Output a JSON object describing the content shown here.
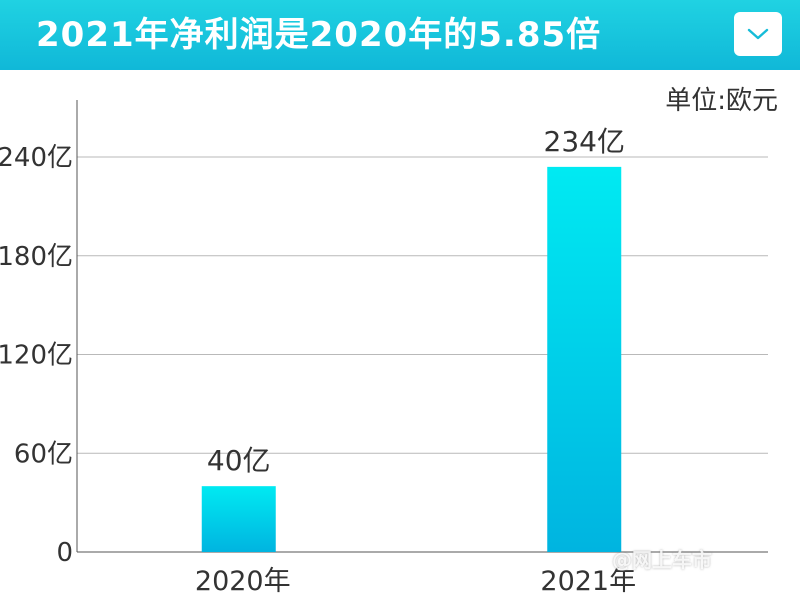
{
  "header": {
    "title": "2021年净利润是2020年的5.85倍",
    "dropdown_icon": "chevron-down-icon"
  },
  "chart_data": {
    "type": "bar",
    "unit_label": "单位:欧元",
    "categories": [
      "2020年",
      "2021年"
    ],
    "values": [
      40,
      234
    ],
    "data_labels": [
      "40亿",
      "234亿"
    ],
    "y_ticks": [
      0,
      60,
      120,
      180,
      240
    ],
    "y_tick_labels": [
      "0",
      "60亿",
      "120亿",
      "180亿",
      "240亿"
    ],
    "ylim": [
      0,
      240
    ],
    "grid": true,
    "bar_gradient": [
      "#00eaf2",
      "#00b4e0"
    ]
  },
  "watermark": {
    "text": "@网上车市"
  }
}
